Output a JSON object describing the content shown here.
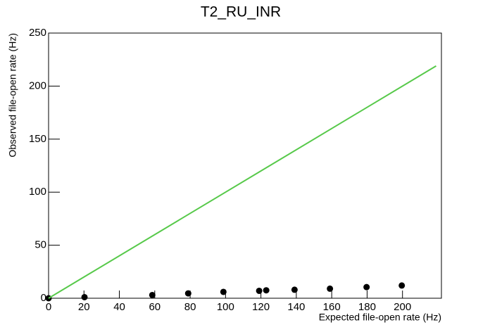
{
  "chart_data": {
    "type": "scatter",
    "title": "T2_RU_INR",
    "x_label": "Expected file-open rate (Hz)",
    "y_label": "Observed file-open rate (Hz)",
    "xlim": [
      0,
      222
    ],
    "ylim": [
      0,
      250
    ],
    "xticks": [
      0,
      20,
      40,
      60,
      80,
      100,
      120,
      140,
      160,
      180,
      200
    ],
    "yticks": [
      0,
      50,
      100,
      150,
      200,
      250
    ],
    "series": [
      {
        "mode": "markers",
        "color": "#000000",
        "x": [
          0,
          20.3,
          58.6,
          78.9,
          98.8,
          119,
          123,
          139,
          159,
          179.7,
          199.6
        ],
        "values": [
          0,
          1,
          3,
          4.6,
          6,
          7,
          7.5,
          8,
          9,
          10.5,
          12
        ]
      },
      {
        "mode": "lines",
        "color": "#57c94a",
        "x": [
          0,
          219
        ],
        "values": [
          0,
          219
        ]
      }
    ]
  }
}
